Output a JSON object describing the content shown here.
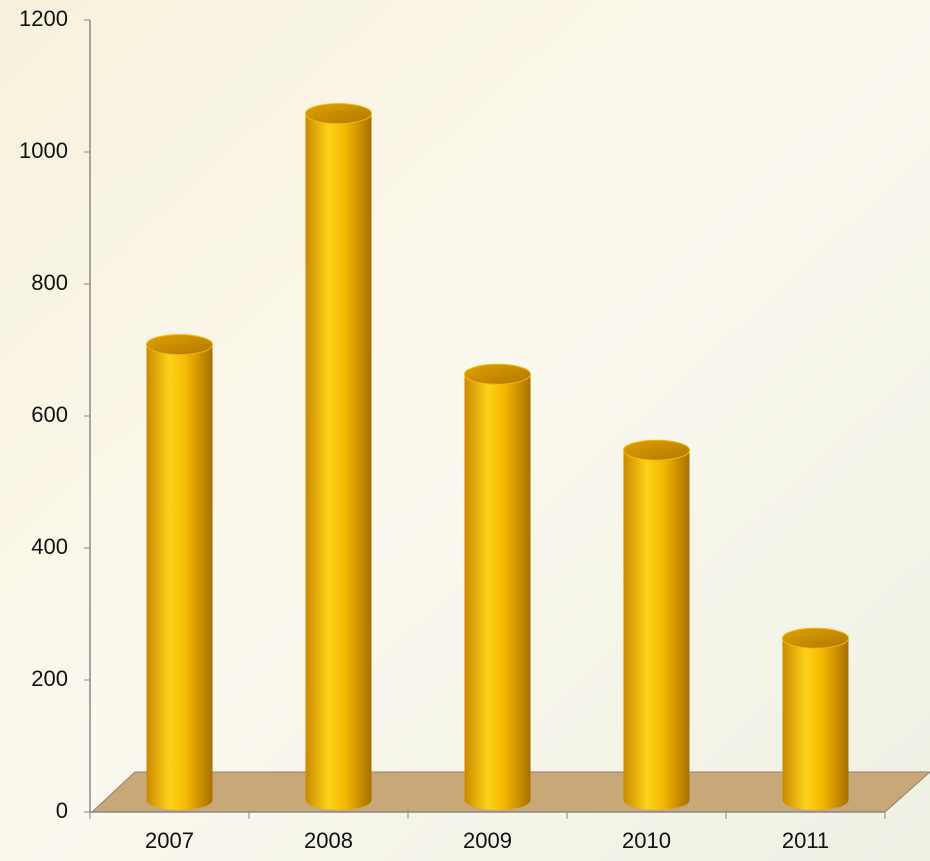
{
  "chart_data": {
    "type": "bar",
    "categories": [
      "2007",
      "2008",
      "2009",
      "2010",
      "2011"
    ],
    "values": [
      690,
      1040,
      645,
      530,
      245
    ],
    "color": "#f5b800",
    "ylim": [
      0,
      1200
    ],
    "yticks": [
      0,
      200,
      400,
      600,
      800,
      1000,
      1200
    ]
  }
}
